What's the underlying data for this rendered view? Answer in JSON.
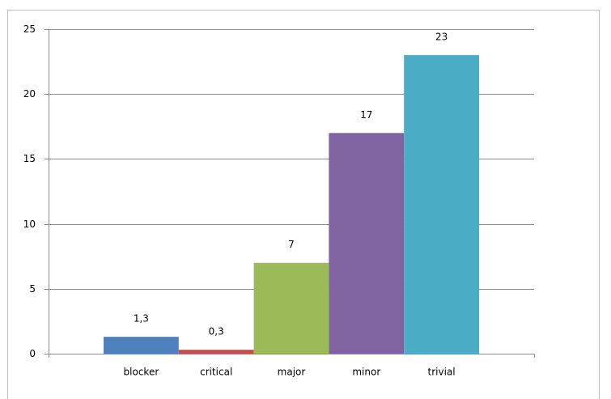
{
  "chart_data": {
    "type": "bar",
    "categories": [
      "blocker",
      "critical",
      "major",
      "minor",
      "trivial"
    ],
    "values": [
      1.3,
      0.3,
      7,
      17,
      23
    ],
    "value_labels": [
      "1,3",
      "0,3",
      "7",
      "17",
      "23"
    ],
    "colors": [
      "#4f81bd",
      "#c0504d",
      "#9bbb59",
      "#8064a2",
      "#4bacc6"
    ],
    "ylim": [
      0,
      25
    ],
    "yticks": [
      0,
      5,
      10,
      15,
      20,
      25
    ],
    "grid": true
  }
}
